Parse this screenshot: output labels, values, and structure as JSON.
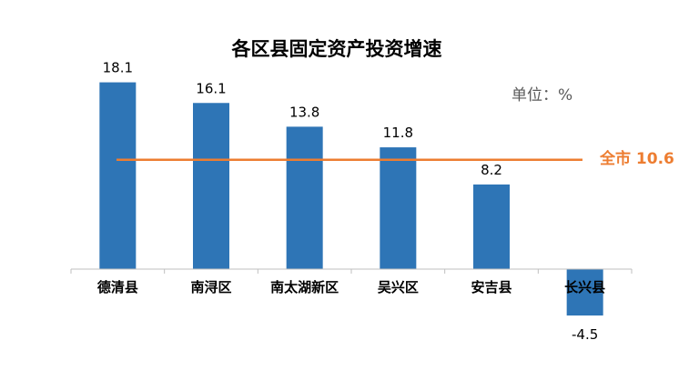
{
  "chart_data": {
    "type": "bar",
    "title": "各区县固定资产投资增速",
    "unit_label": "单位：%",
    "categories": [
      "德清县",
      "南浔区",
      "南太湖新区",
      "吴兴区",
      "安吉县",
      "长兴县"
    ],
    "values": [
      18.1,
      16.1,
      13.8,
      11.8,
      8.2,
      -4.5
    ],
    "value_labels": [
      "18.1",
      "16.1",
      "13.8",
      "11.8",
      "8.2",
      "-4.5"
    ],
    "reference_line": {
      "label": "全市 10.6",
      "value": 10.6,
      "color": "#ED7D31"
    },
    "bar_color": "#2E75B6",
    "ylim": [
      -5,
      19
    ],
    "grid": false,
    "legend": "none"
  }
}
